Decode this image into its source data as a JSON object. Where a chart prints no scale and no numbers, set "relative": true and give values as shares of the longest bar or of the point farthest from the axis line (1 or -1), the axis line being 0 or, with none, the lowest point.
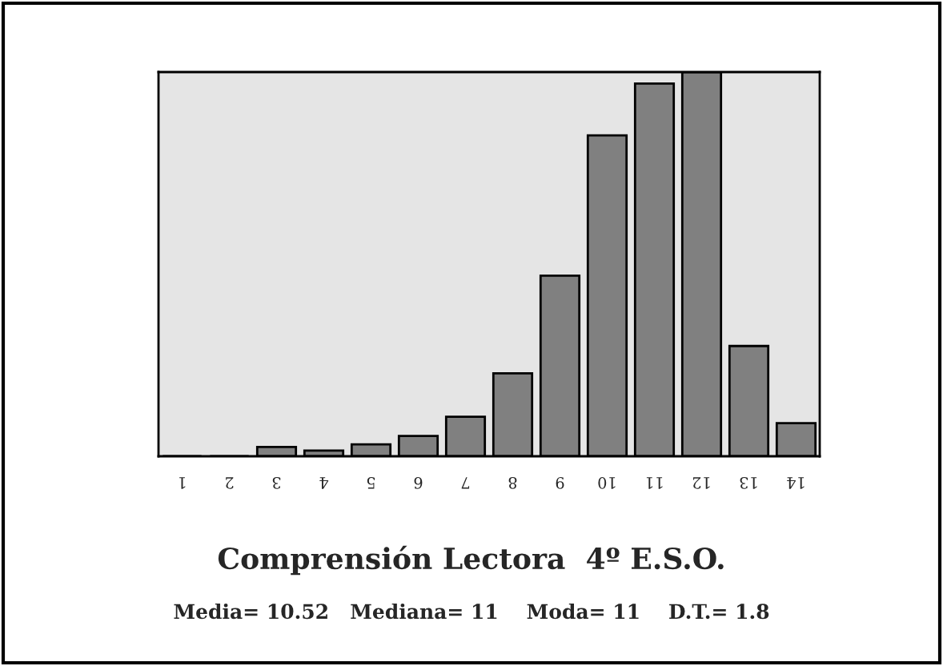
{
  "chart_data": {
    "type": "bar",
    "relative": true,
    "title": "Comprensión Lectora  4º E.S.O.",
    "subtitle": "Media= 10.52   Mediana= 11    Moda= 11    D.T.= 1.8",
    "categories": [
      "1",
      "2",
      "3",
      "4",
      "5",
      "6",
      "7",
      "8",
      "9",
      "10",
      "11",
      "12",
      "13",
      "14"
    ],
    "values": [
      0,
      0,
      0.024,
      0.015,
      0.031,
      0.053,
      0.103,
      0.216,
      0.47,
      0.835,
      0.97,
      1,
      0.287,
      0.086
    ],
    "color": "#808080",
    "grid": false,
    "legend": false
  }
}
